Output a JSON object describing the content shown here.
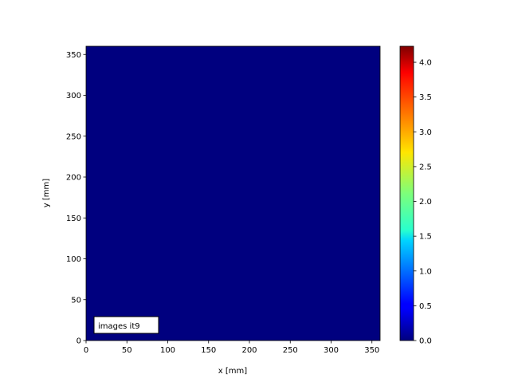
{
  "chart_data": {
    "type": "heatmap",
    "xlabel": "x [mm]",
    "ylabel": "y [mm]",
    "xlim": [
      0,
      360
    ],
    "ylim": [
      0,
      360
    ],
    "xticks": [
      0,
      50,
      100,
      150,
      200,
      250,
      300,
      350
    ],
    "yticks": [
      0,
      50,
      100,
      150,
      200,
      250,
      300,
      350
    ],
    "values": "uniform 0 across the entire field",
    "field_value": 0,
    "colormap": "jet",
    "colorbar": {
      "range": [
        0,
        4.23
      ],
      "ticks": [
        "0.0",
        "0.5",
        "1.0",
        "1.5",
        "2.0",
        "2.5",
        "3.0",
        "3.5",
        "4.0"
      ]
    },
    "annotation": "images it9",
    "field_color": "#00007f"
  }
}
